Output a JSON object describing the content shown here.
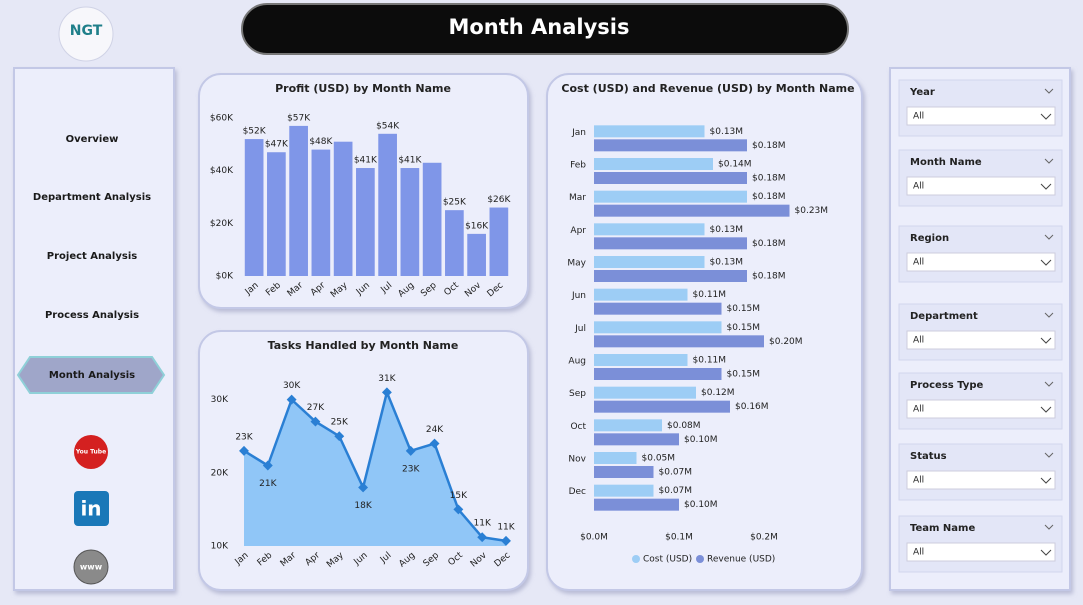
{
  "header": {
    "title": "Month Analysis",
    "logo": "NGT"
  },
  "nav": {
    "items": [
      "Overview",
      "Department Analysis",
      "Project Analysis",
      "Process Analysis",
      "Month Analysis"
    ],
    "active": 4
  },
  "social": [
    "You Tube",
    "in",
    "www"
  ],
  "filters": [
    {
      "label": "Year",
      "value": "All"
    },
    {
      "label": "Month Name",
      "value": "All"
    },
    {
      "label": "Region",
      "value": "All"
    },
    {
      "label": "Department",
      "value": "All"
    },
    {
      "label": "Process Type",
      "value": "All"
    },
    {
      "label": "Status",
      "value": "All"
    },
    {
      "label": "Team Name",
      "value": "All"
    }
  ],
  "chart_data": [
    {
      "type": "bar",
      "title": "Profit (USD) by Month Name",
      "categories": [
        "Jan",
        "Feb",
        "Mar",
        "Apr",
        "May",
        "Jun",
        "Jul",
        "Aug",
        "Sep",
        "Oct",
        "Nov",
        "Dec"
      ],
      "values": [
        52000,
        47000,
        57000,
        48000,
        51000,
        41000,
        54000,
        41000,
        43000,
        25000,
        16000,
        26000
      ],
      "value_labels": [
        "$52K",
        "$47K",
        "$57K",
        "$48K",
        null,
        "$41K",
        "$54K",
        "$41K",
        null,
        "$25K",
        "$16K",
        "$26K"
      ],
      "color": "#7f96e8",
      "ylim": [
        0,
        60000
      ],
      "yticks": [
        {
          "value": 0,
          "label": "$0K"
        },
        {
          "value": 20000,
          "label": "$20K"
        },
        {
          "value": 40000,
          "label": "$40K"
        },
        {
          "value": 60000,
          "label": "$60K"
        }
      ]
    },
    {
      "type": "area",
      "title": "Tasks Handled by Month Name",
      "categories": [
        "Jan",
        "Feb",
        "Mar",
        "Apr",
        "May",
        "Jun",
        "Jul",
        "Aug",
        "Sep",
        "Oct",
        "Nov",
        "Dec"
      ],
      "values": [
        23000,
        21000,
        30000,
        27000,
        25000,
        18000,
        31000,
        23000,
        24000,
        15000,
        11200,
        10700
      ],
      "value_labels": [
        "23K",
        "21K",
        "30K",
        "27K",
        "25K",
        "18K",
        "31K",
        "23K",
        "24K",
        "15K",
        "11K",
        "11K"
      ],
      "color": "#2a7fd4",
      "fill": "#90c6f7",
      "ylim": [
        10000,
        32000
      ],
      "yticks": [
        {
          "value": 10000,
          "label": "10K"
        },
        {
          "value": 20000,
          "label": "20K"
        },
        {
          "value": 30000,
          "label": "30K"
        }
      ]
    },
    {
      "type": "hbar",
      "title": "Cost (USD) and Revenue (USD) by Month Name",
      "categories": [
        "Jan",
        "Feb",
        "Mar",
        "Apr",
        "May",
        "Jun",
        "Jul",
        "Aug",
        "Sep",
        "Oct",
        "Nov",
        "Dec"
      ],
      "series": [
        {
          "name": "Cost (USD)",
          "color": "#9dcdf5",
          "values": [
            130000,
            140000,
            180000,
            130000,
            130000,
            110000,
            150000,
            110000,
            120000,
            80000,
            50000,
            70000
          ],
          "value_labels": [
            "$0.13M",
            "$0.14M",
            "$0.18M",
            "$0.13M",
            "$0.13M",
            "$0.11M",
            "$0.15M",
            "$0.11M",
            "$0.12M",
            "$0.08M",
            "$0.05M",
            "$0.07M"
          ]
        },
        {
          "name": "Revenue (USD)",
          "color": "#7b8fd8",
          "values": [
            180000,
            180000,
            230000,
            180000,
            180000,
            150000,
            200000,
            150000,
            160000,
            100000,
            70000,
            100000
          ],
          "value_labels": [
            "$0.18M",
            "$0.18M",
            "$0.23M",
            "$0.18M",
            "$0.18M",
            "$0.15M",
            "$0.20M",
            "$0.15M",
            "$0.16M",
            "$0.10M",
            "$0.07M",
            "$0.10M"
          ]
        }
      ],
      "xlim": [
        0,
        240000
      ],
      "xticks": [
        {
          "value": 0,
          "label": "$0.0M"
        },
        {
          "value": 100000,
          "label": "$0.1M"
        },
        {
          "value": 200000,
          "label": "$0.2M"
        }
      ],
      "legend": "bottom"
    }
  ]
}
